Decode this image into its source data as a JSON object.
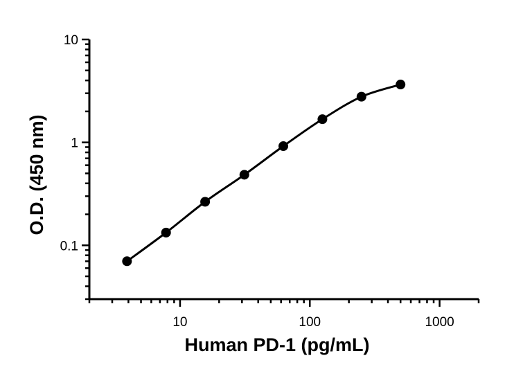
{
  "chart_data": {
    "type": "scatter",
    "title": "",
    "xlabel": "Human PD-1 (pg/mL)",
    "ylabel": "O.D. (450 nm)",
    "x_scale": "log",
    "y_scale": "log",
    "xlim": [
      2,
      2000
    ],
    "ylim": [
      0.03,
      10
    ],
    "x_ticks": [
      10,
      100,
      1000
    ],
    "x_tick_labels": [
      "10",
      "100",
      "1000"
    ],
    "y_ticks": [
      0.1,
      1,
      10
    ],
    "y_tick_labels": [
      "0.1",
      "1",
      "10"
    ],
    "grid": false,
    "legend": "none",
    "series": [
      {
        "x": [
          3.9,
          7.8,
          15.6,
          31.3,
          62.5,
          125,
          250,
          500
        ],
        "y": [
          0.07,
          0.133,
          0.265,
          0.485,
          0.92,
          1.68,
          2.78,
          3.65
        ],
        "marker": "circle",
        "fit_curve": true,
        "color": "#000000"
      }
    ]
  }
}
